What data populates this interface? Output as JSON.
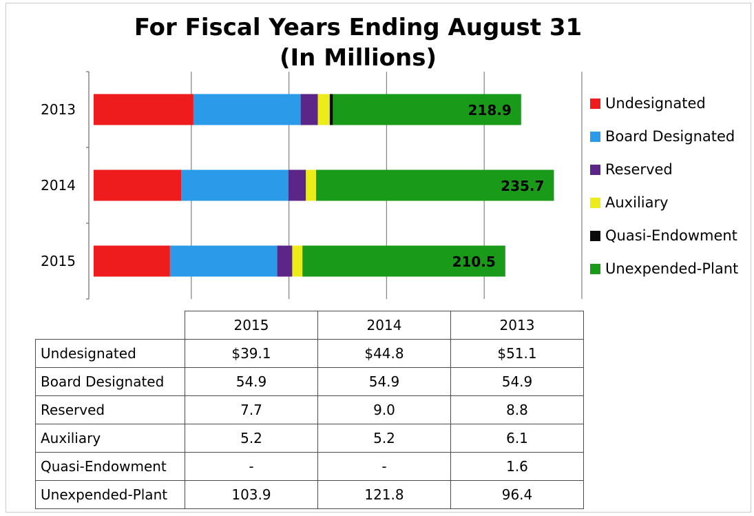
{
  "chart_data": {
    "type": "bar",
    "orientation": "horizontal",
    "stacked": true,
    "title": "For Fiscal Years Ending August 31",
    "subtitle": "(In Millions)",
    "categories": [
      "2013",
      "2014",
      "2015"
    ],
    "series": [
      {
        "name": "Undesignated",
        "color": "#ee1c1c",
        "values": [
          51.1,
          44.8,
          39.1
        ]
      },
      {
        "name": "Board Designated",
        "color": "#2b9ae8",
        "values": [
          54.9,
          54.9,
          54.9
        ]
      },
      {
        "name": "Reserved",
        "color": "#5c2588",
        "values": [
          8.8,
          9.0,
          7.7
        ]
      },
      {
        "name": "Auxiliary",
        "color": "#ecec1a",
        "values": [
          6.1,
          5.2,
          5.2
        ]
      },
      {
        "name": "Quasi-Endowment",
        "color": "#0a0a0a",
        "values": [
          1.6,
          0,
          0
        ]
      },
      {
        "name": "Unexpended-Plant",
        "color": "#199a19",
        "values": [
          96.4,
          121.8,
          103.9
        ]
      }
    ],
    "data_labels": [
      "218.9",
      "235.7",
      "210.5"
    ],
    "xlim": [
      0,
      250
    ],
    "grid": true,
    "legend_position": "right"
  },
  "table": {
    "columns": [
      "2015",
      "2014",
      "2013"
    ],
    "rows": [
      {
        "label": "Undesignated",
        "values": [
          "$39.1",
          "$44.8",
          "$51.1"
        ]
      },
      {
        "label": "Board Designated",
        "values": [
          "54.9",
          "54.9",
          "54.9"
        ]
      },
      {
        "label": "Reserved",
        "values": [
          "7.7",
          "9.0",
          "8.8"
        ]
      },
      {
        "label": "Auxiliary",
        "values": [
          "5.2",
          "5.2",
          "6.1"
        ]
      },
      {
        "label": "Quasi-Endowment",
        "values": [
          "-",
          "-",
          "1.6"
        ]
      },
      {
        "label": "Unexpended-Plant",
        "values": [
          "103.9",
          "121.8",
          "96.4"
        ]
      }
    ]
  }
}
